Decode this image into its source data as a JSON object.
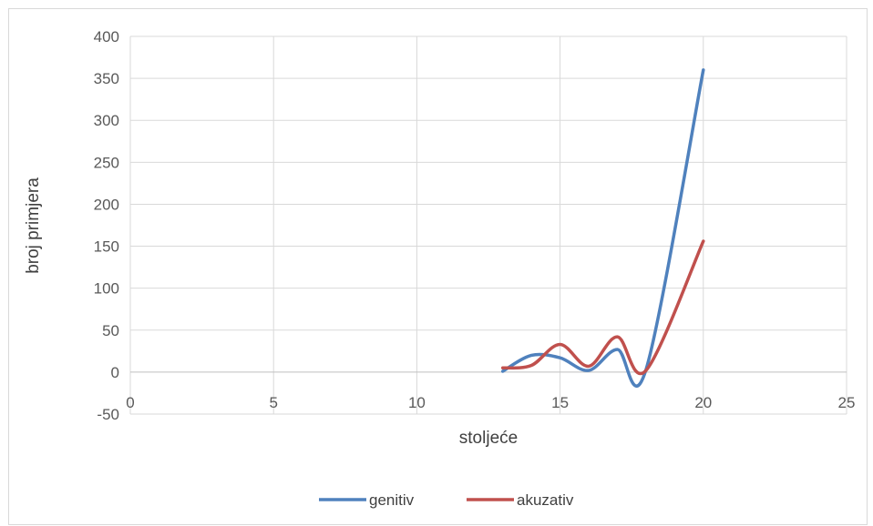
{
  "chart_data": {
    "type": "scatter",
    "title": "",
    "xlabel": "stoljeće",
    "ylabel": "broj primjera",
    "xlim": [
      0,
      25
    ],
    "ylim": [
      -50,
      400
    ],
    "x_ticks": [
      0,
      5,
      10,
      15,
      20,
      25
    ],
    "y_ticks": [
      -50,
      0,
      50,
      100,
      150,
      200,
      250,
      300,
      350,
      400
    ],
    "grid": "vertical and horizontal major gridlines",
    "legend_position": "bottom",
    "smoothed_lines": true,
    "series": [
      {
        "name": "genitiv",
        "color": "#4f81bd",
        "x": [
          13,
          14,
          15,
          16,
          17,
          18,
          20
        ],
        "y": [
          1,
          20,
          17,
          2,
          27,
          3,
          360
        ]
      },
      {
        "name": "akuzativ",
        "color": "#c0504d",
        "x": [
          13,
          14,
          15,
          16,
          17,
          18,
          20
        ],
        "y": [
          5,
          8,
          33,
          7,
          42,
          2,
          156
        ]
      }
    ]
  }
}
